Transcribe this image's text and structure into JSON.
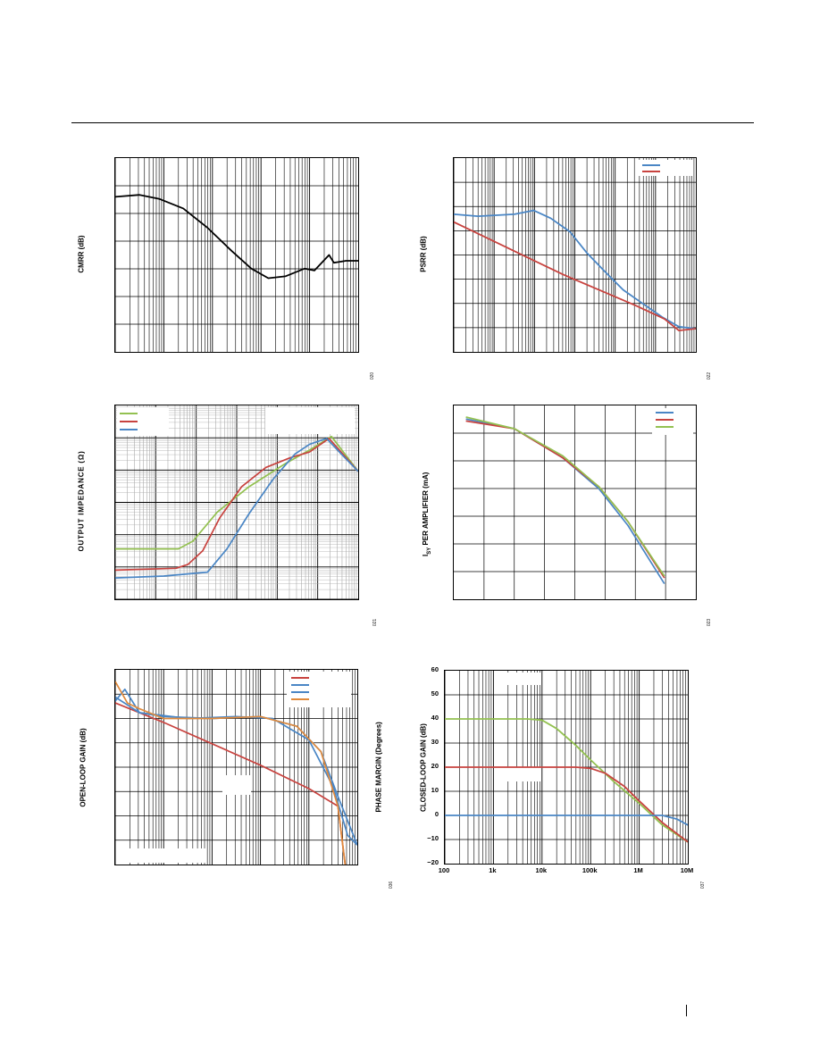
{
  "page": {
    "colors": {
      "black": "#000000",
      "blue": "#4a86c5",
      "red": "#c8433f",
      "green": "#93c151",
      "orange": "#e08a3c",
      "grid": "#000000",
      "light_grid": "#bdbdbd"
    }
  },
  "charts": {
    "cmrr": {
      "ylabel": "CMRR (dB)",
      "figid": "020",
      "chart_data": {
        "type": "line",
        "ylabel": "CMRR (dB)",
        "x_scale": "log",
        "grid": true,
        "series": [
          {
            "color": "#000000",
            "points": [
              [
                0,
                0.8
              ],
              [
                0.1,
                0.81
              ],
              [
                0.18,
                0.79
              ],
              [
                0.28,
                0.74
              ],
              [
                0.38,
                0.64
              ],
              [
                0.48,
                0.52
              ],
              [
                0.56,
                0.43
              ],
              [
                0.63,
                0.38
              ],
              [
                0.7,
                0.39
              ],
              [
                0.78,
                0.43
              ],
              [
                0.82,
                0.42
              ],
              [
                0.88,
                0.5
              ],
              [
                0.9,
                0.46
              ],
              [
                0.95,
                0.47
              ],
              [
                1,
                0.47
              ]
            ]
          }
        ]
      }
    },
    "psrr": {
      "ylabel": "PSRR (dB)",
      "figid": "022",
      "chart_data": {
        "type": "line",
        "ylabel": "PSRR (dB)",
        "x_scale": "log",
        "grid": true,
        "legend_position": "top-right",
        "series": [
          {
            "color": "#4a86c5",
            "points": [
              [
                0,
                0.71
              ],
              [
                0.1,
                0.7
              ],
              [
                0.25,
                0.71
              ],
              [
                0.33,
                0.73
              ],
              [
                0.4,
                0.69
              ],
              [
                0.48,
                0.62
              ],
              [
                0.55,
                0.51
              ],
              [
                0.62,
                0.42
              ],
              [
                0.7,
                0.32
              ],
              [
                0.78,
                0.25
              ],
              [
                0.86,
                0.18
              ],
              [
                0.93,
                0.13
              ],
              [
                1,
                0.12
              ]
            ]
          },
          {
            "color": "#c8433f",
            "points": [
              [
                0,
                0.67
              ],
              [
                0.15,
                0.58
              ],
              [
                0.3,
                0.49
              ],
              [
                0.45,
                0.4
              ],
              [
                0.6,
                0.32
              ],
              [
                0.75,
                0.24
              ],
              [
                0.87,
                0.17
              ],
              [
                0.93,
                0.11
              ],
              [
                1,
                0.12
              ]
            ]
          }
        ]
      }
    },
    "zout": {
      "ylabel": "OUTPUT IMPEDANCE (Ω)",
      "figid": "021",
      "chart_data": {
        "type": "line",
        "ylabel": "OUTPUT IMPEDANCE (Ω)",
        "x_scale": "log",
        "y_scale": "log",
        "grid": true,
        "legend_position": "top-left",
        "series": [
          {
            "color": "#93c151",
            "points": [
              [
                0,
                0.26
              ],
              [
                0.26,
                0.26
              ],
              [
                0.32,
                0.3
              ],
              [
                0.42,
                0.45
              ],
              [
                0.55,
                0.58
              ],
              [
                0.7,
                0.7
              ],
              [
                0.8,
                0.77
              ],
              [
                0.89,
                0.84
              ],
              [
                1,
                0.66
              ]
            ]
          },
          {
            "color": "#c8433f",
            "points": [
              [
                0,
                0.15
              ],
              [
                0.25,
                0.16
              ],
              [
                0.3,
                0.18
              ],
              [
                0.36,
                0.25
              ],
              [
                0.43,
                0.42
              ],
              [
                0.52,
                0.58
              ],
              [
                0.62,
                0.68
              ],
              [
                0.72,
                0.73
              ],
              [
                0.8,
                0.76
              ],
              [
                0.88,
                0.83
              ],
              [
                1,
                0.66
              ]
            ]
          },
          {
            "color": "#4a86c5",
            "points": [
              [
                0,
                0.11
              ],
              [
                0.2,
                0.12
              ],
              [
                0.38,
                0.14
              ],
              [
                0.46,
                0.26
              ],
              [
                0.55,
                0.44
              ],
              [
                0.65,
                0.62
              ],
              [
                0.74,
                0.75
              ],
              [
                0.8,
                0.8
              ],
              [
                0.87,
                0.83
              ],
              [
                0.93,
                0.75
              ],
              [
                1,
                0.66
              ]
            ]
          }
        ]
      }
    },
    "isy": {
      "ylabel": "ISY PER AMPLIFIER (mA)",
      "ylabel_main": "I",
      "ylabel_sub": "SY",
      "ylabel_rest": " PER AMPLIFIER (mA)",
      "figid": "023",
      "chart_data": {
        "type": "line",
        "ylabel": "ISY PER AMPLIFIER (mA)",
        "grid": true,
        "legend_position": "top-right",
        "series": [
          {
            "color": "#4a86c5",
            "points": [
              [
                0.05,
                0.93
              ],
              [
                0.25,
                0.88
              ],
              [
                0.45,
                0.73
              ],
              [
                0.6,
                0.57
              ],
              [
                0.72,
                0.38
              ],
              [
                0.87,
                0.08
              ]
            ]
          },
          {
            "color": "#c8433f",
            "points": [
              [
                0.05,
                0.92
              ],
              [
                0.25,
                0.88
              ],
              [
                0.45,
                0.73
              ],
              [
                0.6,
                0.58
              ],
              [
                0.72,
                0.4
              ],
              [
                0.87,
                0.11
              ]
            ]
          },
          {
            "color": "#93c151",
            "points": [
              [
                0.05,
                0.94
              ],
              [
                0.25,
                0.88
              ],
              [
                0.45,
                0.74
              ],
              [
                0.6,
                0.58
              ],
              [
                0.72,
                0.4
              ],
              [
                0.87,
                0.12
              ]
            ]
          }
        ]
      }
    },
    "aol": {
      "ylabel": "OPEN-LOOP GAIN (dB)",
      "ylabel2": "PHASE MARGIN (Degrees)",
      "figid": "036",
      "chart_data": {
        "type": "line",
        "ylabel": "OPEN-LOOP GAIN (dB)",
        "y2label": "PHASE MARGIN (Degrees)",
        "x_scale": "log",
        "grid": true,
        "legend_position": "top-right",
        "series": [
          {
            "color": "#c8433f",
            "points": [
              [
                0,
                0.83
              ],
              [
                0.2,
                0.73
              ],
              [
                0.4,
                0.62
              ],
              [
                0.6,
                0.51
              ],
              [
                0.8,
                0.39
              ],
              [
                0.92,
                0.3
              ],
              [
                0.95,
                0.0
              ]
            ]
          },
          {
            "color": "#4a86c5",
            "points": [
              [
                0,
                0.84
              ],
              [
                0.04,
                0.9
              ],
              [
                0.1,
                0.78
              ],
              [
                0.2,
                0.76
              ],
              [
                0.4,
                0.75
              ],
              [
                0.6,
                0.76
              ],
              [
                0.75,
                0.71
              ],
              [
                0.85,
                0.58
              ],
              [
                0.92,
                0.35
              ],
              [
                1,
                0.1
              ]
            ]
          },
          {
            "color": "#4a86c5",
            "points": [
              [
                0,
                0.86
              ],
              [
                0.1,
                0.78
              ],
              [
                0.3,
                0.75
              ],
              [
                0.5,
                0.76
              ],
              [
                0.65,
                0.75
              ],
              [
                0.8,
                0.64
              ],
              [
                0.9,
                0.4
              ],
              [
                0.96,
                0.15
              ],
              [
                1,
                0.1
              ]
            ]
          },
          {
            "color": "#e08a3c",
            "points": [
              [
                0,
                0.94
              ],
              [
                0.05,
                0.83
              ],
              [
                0.1,
                0.8
              ],
              [
                0.2,
                0.75
              ],
              [
                0.4,
                0.75
              ],
              [
                0.6,
                0.76
              ],
              [
                0.75,
                0.71
              ],
              [
                0.85,
                0.58
              ],
              [
                0.92,
                0.3
              ],
              [
                0.95,
                0.0
              ]
            ]
          }
        ]
      }
    },
    "acl": {
      "ylabel": "CLOSED-LOOP GAIN (dB)",
      "figid": "037",
      "chart_data": {
        "type": "line",
        "ylabel": "CLOSED-LOOP GAIN (dB)",
        "x_scale": "log",
        "xlim": [
          100,
          10000000
        ],
        "ylim": [
          -20,
          60
        ],
        "x_ticks": [
          "100",
          "1k",
          "10k",
          "100k",
          "1M",
          "10M"
        ],
        "y_ticks": [
          "60",
          "50",
          "40",
          "30",
          "20",
          "10",
          "0",
          "−10",
          "−20"
        ],
        "grid": true,
        "series": [
          {
            "color": "#93c151",
            "points": [
              [
                100,
                40
              ],
              [
                5000,
                40
              ],
              [
                10000,
                39.5
              ],
              [
                20000,
                36
              ],
              [
                50000,
                29
              ],
              [
                100000,
                23
              ],
              [
                300000,
                14
              ],
              [
                1000000,
                5
              ],
              [
                3000000,
                -4
              ],
              [
                10000000,
                -11
              ]
            ]
          },
          {
            "color": "#c8433f",
            "points": [
              [
                100,
                20
              ],
              [
                50000,
                20
              ],
              [
                100000,
                19.5
              ],
              [
                200000,
                17.5
              ],
              [
                500000,
                12
              ],
              [
                1000000,
                6
              ],
              [
                3000000,
                -3
              ],
              [
                10000000,
                -11
              ]
            ]
          },
          {
            "color": "#4a86c5",
            "points": [
              [
                100,
                0
              ],
              [
                1000000,
                0
              ],
              [
                3000000,
                0
              ],
              [
                6000000,
                -1.5
              ],
              [
                10000000,
                -4
              ]
            ]
          }
        ]
      }
    }
  }
}
